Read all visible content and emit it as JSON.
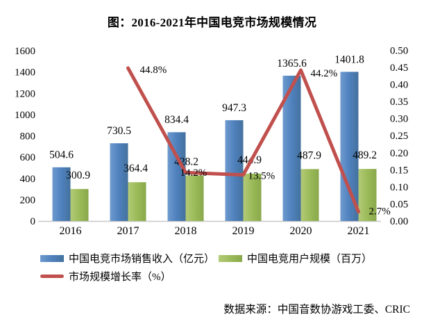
{
  "title": "图：2016-2021年中国电竞市场规模情况",
  "source": "数据来源：中国音数协游戏工委、CRIC",
  "colors": {
    "revenue_bar": "#4F81BD",
    "users_bar": "#9BBB59",
    "growth_line": "#C0504D",
    "axis_line": "#C8C8C8",
    "text": "#000000",
    "background": "#FFFFFF"
  },
  "legend": {
    "items": [
      {
        "label": "中国电竞市场销售收入（亿元）",
        "marker": "bar",
        "color": "#4F81BD"
      },
      {
        "label": "中国电竞用户规模（百万）",
        "marker": "bar",
        "color": "#9BBB59"
      },
      {
        "label": "市场规模增长率（%）",
        "marker": "line",
        "color": "#C0504D"
      }
    ]
  },
  "chart_data": {
    "type": "bar",
    "subtype": "grouped-bars-with-line",
    "title": "图：2016-2021年中国电竞市场规模情况",
    "categories": [
      "2016",
      "2017",
      "2018",
      "2019",
      "2020",
      "2021"
    ],
    "series": [
      {
        "name": "中国电竞市场销售收入（亿元）",
        "type": "bar",
        "axis": "left",
        "color": "#4F81BD",
        "values": [
          504.6,
          730.5,
          834.4,
          947.3,
          1365.6,
          1401.8
        ],
        "labels": [
          "504.6",
          "730.5",
          "834.4",
          "947.3",
          "1365.6",
          "1401.8"
        ]
      },
      {
        "name": "中国电竞用户规模（百万）",
        "type": "bar",
        "axis": "left",
        "color": "#9BBB59",
        "values": [
          300.9,
          364.4,
          428.2,
          444.9,
          487.9,
          489.2
        ],
        "labels": [
          "300.9",
          "364.4",
          "428.2",
          "444.9",
          "487.9",
          "489.2"
        ]
      },
      {
        "name": "市场规模增长率（%）",
        "type": "line",
        "axis": "right",
        "color": "#C0504D",
        "values": [
          null,
          44.8,
          14.2,
          13.5,
          44.2,
          2.7
        ],
        "labels": [
          "",
          "44.8%",
          "14.2%",
          "13.5%",
          "44.2%",
          "2.7%"
        ]
      }
    ],
    "left_axis": {
      "min": 0,
      "max": 1600,
      "step": 200,
      "ticks": [
        "0",
        "200",
        "400",
        "600",
        "800",
        "1000",
        "1200",
        "1400",
        "1600"
      ]
    },
    "right_axis": {
      "min": 0.0,
      "max": 0.5,
      "step": 0.05,
      "ticks": [
        "0.00",
        "0.05",
        "0.10",
        "0.15",
        "0.20",
        "0.25",
        "0.30",
        "0.35",
        "0.40",
        "0.45",
        "0.50"
      ]
    },
    "grid": false,
    "legend_position": "bottom-left"
  }
}
